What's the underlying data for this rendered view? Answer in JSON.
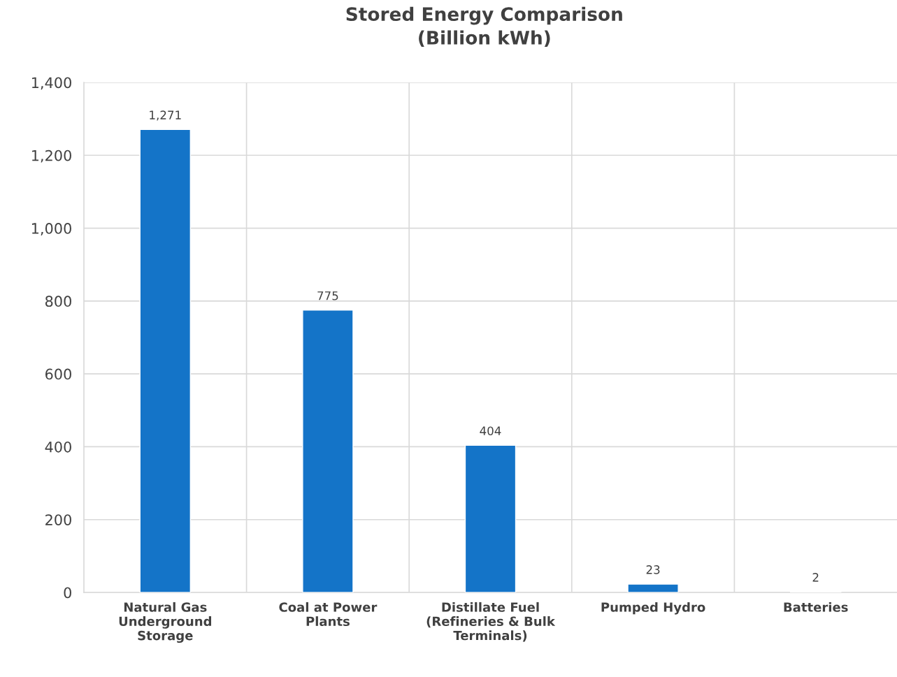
{
  "chart_data": {
    "type": "bar",
    "title": "Stored Energy Comparison\n(Billion kWh)",
    "categories": [
      "Natural Gas\nUnderground\nStorage",
      "Coal at Power\nPlants",
      "Distillate Fuel\n(Refineries & Bulk\nTerminals)",
      "Pumped Hydro",
      "Batteries"
    ],
    "values": [
      1271,
      775,
      404,
      23,
      2
    ],
    "color": "#1474c8",
    "ylim": [
      0,
      1400
    ],
    "yticks": [
      0,
      {
        "value": 200,
        "label": "200"
      },
      {
        "value": 400,
        "label": "400"
      },
      {
        "value": 600,
        "label": "600"
      },
      {
        "value": 800,
        "label": "800"
      },
      {
        "value": 1000,
        "label": "1,000"
      },
      {
        "value": 1200,
        "label": "1,200"
      },
      {
        "value": 1400,
        "label": "1,400"
      }
    ],
    "value_labels": [
      "1,271",
      "775",
      "404",
      "23",
      "2"
    ],
    "grid": true
  }
}
